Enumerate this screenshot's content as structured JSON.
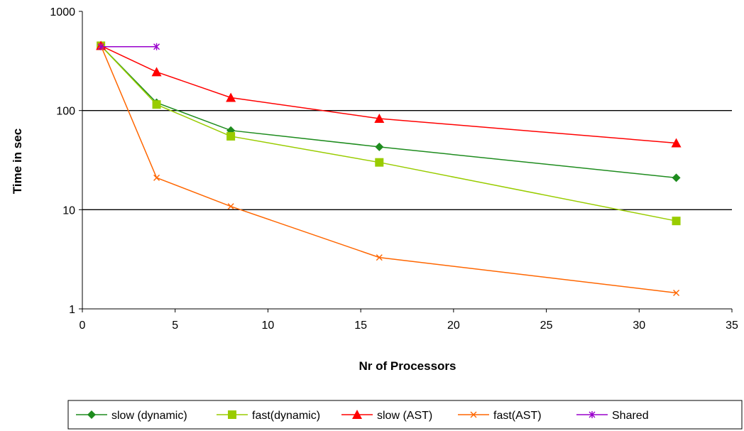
{
  "chart_data": {
    "type": "line",
    "title": "",
    "xlabel": "Nr of Processors",
    "ylabel": "Time in sec",
    "xlim": [
      0,
      35
    ],
    "ylim": [
      1,
      1000
    ],
    "y_scale": "log",
    "x_ticks": [
      0,
      5,
      10,
      15,
      20,
      25,
      30,
      35
    ],
    "y_ticks": [
      1,
      10,
      100,
      1000
    ],
    "y_tick_labels": [
      "1",
      "10",
      "100",
      "1000"
    ],
    "grid": "horizontal major lines at 10 and 100",
    "legend_position": "bottom",
    "series": [
      {
        "name": "slow (dynamic)",
        "color": "#1e8c1e",
        "marker": "diamond",
        "x": [
          1,
          4,
          8,
          16,
          32
        ],
        "y": [
          450,
          120,
          63,
          43,
          21
        ]
      },
      {
        "name": "fast(dynamic)",
        "color": "#99cc00",
        "marker": "square",
        "x": [
          1,
          4,
          8,
          16,
          32
        ],
        "y": [
          450,
          115,
          55,
          30,
          7.7
        ]
      },
      {
        "name": "slow (AST)",
        "color": "#ff0000",
        "marker": "triangle",
        "x": [
          1,
          4,
          8,
          16,
          32
        ],
        "y": [
          450,
          245,
          135,
          83,
          47
        ]
      },
      {
        "name": "fast(AST)",
        "color": "#ff6600",
        "marker": "x",
        "x": [
          1,
          4,
          8,
          16,
          32
        ],
        "y": [
          450,
          21,
          10.8,
          3.3,
          1.45
        ]
      },
      {
        "name": "Shared",
        "color": "#9900cc",
        "marker": "star",
        "x": [
          1,
          4
        ],
        "y": [
          440,
          440
        ]
      }
    ]
  }
}
